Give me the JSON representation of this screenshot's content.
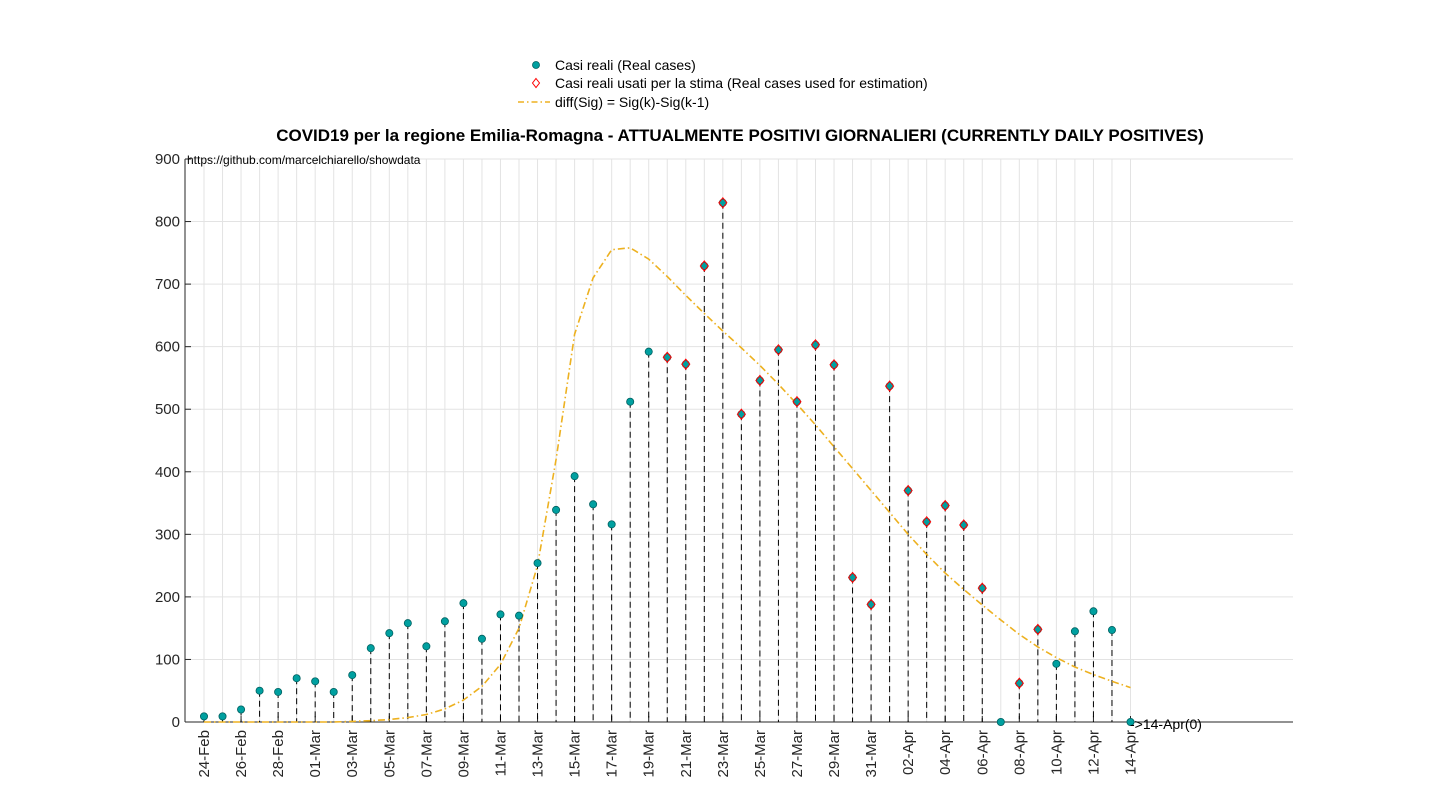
{
  "chart_data": {
    "type": "scatter",
    "title": "COVID19 per la regione Emilia-Romagna - ATTUALMENTE POSITIVI GIORNALIERI (CURRENTLY DAILY POSITIVES)",
    "source_url": "https://github.com/marcelchiarello/showdata",
    "annotation": "->14-Apr(0)",
    "xlabel": "",
    "ylabel": "",
    "ylim": [
      0,
      900
    ],
    "yticks": [
      0,
      100,
      200,
      300,
      400,
      500,
      600,
      700,
      800,
      900
    ],
    "x_tick_labels": [
      "24-Feb",
      "26-Feb",
      "28-Feb",
      "01-Mar",
      "03-Mar",
      "05-Mar",
      "07-Mar",
      "09-Mar",
      "11-Mar",
      "13-Mar",
      "15-Mar",
      "17-Mar",
      "19-Mar",
      "21-Mar",
      "23-Mar",
      "25-Mar",
      "27-Mar",
      "29-Mar",
      "31-Mar",
      "02-Apr",
      "04-Apr",
      "06-Apr",
      "08-Apr",
      "10-Apr",
      "12-Apr",
      "14-Apr"
    ],
    "grid": true,
    "legend_position": "top-center",
    "legend": [
      "Casi reali (Real cases)",
      "Casi reali usati per la stima (Real cases used for estimation)",
      "diff(Sig) = Sig(k)-Sig(k-1)"
    ],
    "dates": [
      "24-Feb",
      "25-Feb",
      "26-Feb",
      "27-Feb",
      "28-Feb",
      "29-Feb",
      "01-Mar",
      "02-Mar",
      "03-Mar",
      "04-Mar",
      "05-Mar",
      "06-Mar",
      "07-Mar",
      "08-Mar",
      "09-Mar",
      "10-Mar",
      "11-Mar",
      "12-Mar",
      "13-Mar",
      "14-Mar",
      "15-Mar",
      "16-Mar",
      "17-Mar",
      "18-Mar",
      "19-Mar",
      "20-Mar",
      "21-Mar",
      "22-Mar",
      "23-Mar",
      "24-Mar",
      "25-Mar",
      "26-Mar",
      "27-Mar",
      "28-Mar",
      "29-Mar",
      "30-Mar",
      "31-Mar",
      "01-Apr",
      "02-Apr",
      "03-Apr",
      "04-Apr",
      "05-Apr",
      "06-Apr",
      "07-Apr",
      "08-Apr",
      "09-Apr",
      "10-Apr",
      "11-Apr",
      "12-Apr",
      "13-Apr",
      "14-Apr"
    ],
    "series": [
      {
        "name": "Casi reali (Real cases)",
        "values": [
          9,
          9,
          20,
          50,
          48,
          70,
          65,
          48,
          75,
          118,
          142,
          158,
          121,
          161,
          190,
          133,
          172,
          170,
          254,
          339,
          393,
          348,
          316,
          512,
          592,
          583,
          572,
          729,
          830,
          492,
          546,
          595,
          512,
          603,
          571,
          231,
          188,
          537,
          370,
          320,
          346,
          315,
          214,
          0,
          62,
          148,
          93,
          145,
          177,
          147,
          0
        ],
        "color": "#00a0a0"
      },
      {
        "name": "Casi reali usati per la stima (Real cases used for estimation)",
        "start_index": 25,
        "values": [
          583,
          572,
          729,
          830,
          492,
          546,
          595,
          512,
          603,
          571,
          231,
          188,
          537,
          370,
          320,
          346,
          315,
          214,
          null,
          62,
          148
        ],
        "color": "#ff0000"
      },
      {
        "name": "diff(Sig) = Sig(k)-Sig(k-1)",
        "values": [
          0,
          0,
          0,
          0,
          0,
          0,
          0,
          0,
          1,
          2,
          4,
          7,
          12,
          21,
          35,
          57,
          92,
          150,
          250,
          420,
          620,
          710,
          755,
          758,
          740,
          712,
          682,
          653,
          625,
          598,
          570,
          540,
          508,
          475,
          440,
          405,
          370,
          335,
          300,
          268,
          238,
          212,
          187,
          163,
          140,
          120,
          103,
          88,
          76,
          65,
          55
        ],
        "color": "#edb120"
      }
    ]
  }
}
